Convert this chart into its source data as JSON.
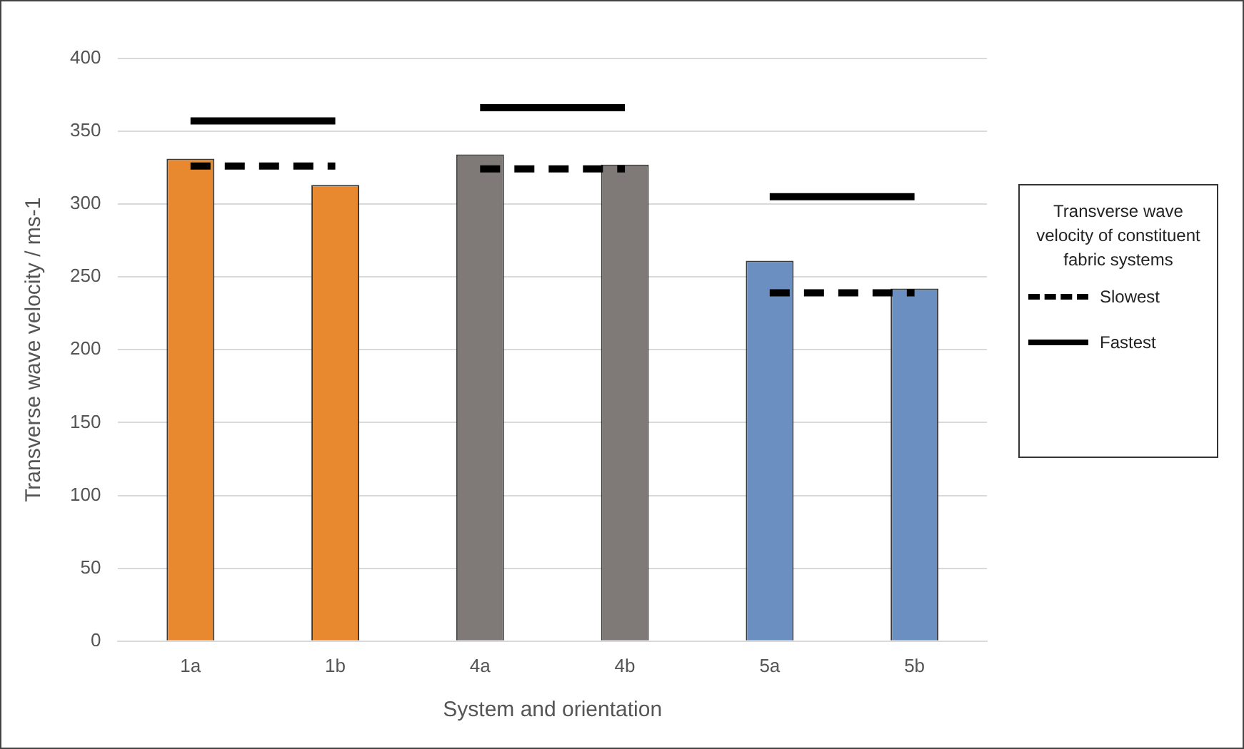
{
  "chart_data": {
    "type": "bar",
    "xlabel": "System and orientation",
    "ylabel": "Transverse wave velocity / ms-1",
    "legend_title": "Transverse wave velocity of constituent fabric systems",
    "categories": [
      "1a",
      "1b",
      "4a",
      "4b",
      "5a",
      "5b"
    ],
    "ylim": [
      0,
      400
    ],
    "yticks": [
      0,
      50,
      100,
      150,
      200,
      250,
      300,
      350,
      400
    ],
    "grid": "y",
    "legend": "right",
    "series": [
      {
        "colors": [
          "#e8892f",
          "#e8892f",
          "#7f7a78",
          "#7f7a78",
          "#6a8fc0",
          "#6a8fc0"
        ],
        "values": [
          331,
          313,
          334,
          327,
          261,
          242
        ]
      },
      {
        "type": "line",
        "name": "Slowest",
        "color": "#000000",
        "line_style": "dashed",
        "marker": "none",
        "x": [
          "1a",
          "1b"
        ],
        "values": [
          326,
          326
        ]
      },
      {
        "type": "line",
        "color": "#000000",
        "line_style": "dashed",
        "marker": "none",
        "x": [
          "4a",
          "4b"
        ],
        "values": [
          324,
          324
        ]
      },
      {
        "type": "line",
        "color": "#000000",
        "line_style": "dashed",
        "marker": "none",
        "x": [
          "5a",
          "5b"
        ],
        "values": [
          239,
          239
        ]
      },
      {
        "type": "line",
        "name": "Fastest",
        "color": "#000000",
        "line_style": "solid",
        "marker": "none",
        "x": [
          "1a",
          "1b"
        ],
        "values": [
          357,
          357
        ]
      },
      {
        "type": "line",
        "color": "#000000",
        "line_style": "solid",
        "marker": "none",
        "x": [
          "4a",
          "4b"
        ],
        "values": [
          366,
          366
        ]
      },
      {
        "type": "line",
        "color": "#000000",
        "line_style": "solid",
        "marker": "none",
        "x": [
          "5a",
          "5b"
        ],
        "values": [
          305,
          305
        ]
      }
    ]
  }
}
